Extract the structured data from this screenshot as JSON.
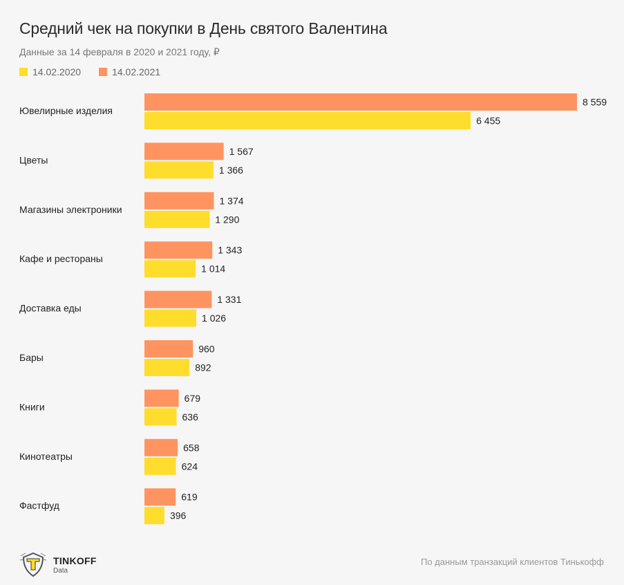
{
  "title": "Средний чек на покупки в День святого Валентина",
  "subtitle": "Данные за 14 февраля в 2020 и 2021 году, ₽",
  "legend": [
    {
      "label": "14.02.2020",
      "color": "#ffdd2d"
    },
    {
      "label": "14.02.2021",
      "color": "#ff9461"
    }
  ],
  "chart_data": {
    "type": "bar",
    "orientation": "horizontal",
    "categories": [
      "Ювелирные изделия",
      "Цветы",
      "Магазины электроники",
      "Кафе и рестораны",
      "Доставка еды",
      "Бары",
      "Книги",
      "Кинотеатры",
      "Фастфуд"
    ],
    "series": [
      {
        "name": "14.02.2021",
        "color": "#ff9461",
        "values": [
          8559,
          1567,
          1374,
          1343,
          1331,
          960,
          679,
          658,
          619
        ],
        "labels": [
          "8 559",
          "1 567",
          "1 374",
          "1 343",
          "1 331",
          "960",
          "679",
          "658",
          "619"
        ]
      },
      {
        "name": "14.02.2020",
        "color": "#ffdd2d",
        "values": [
          6455,
          1366,
          1290,
          1014,
          1026,
          892,
          636,
          624,
          396
        ],
        "labels": [
          "6 455",
          "1 366",
          "1 290",
          "1 014",
          "1 026",
          "892",
          "636",
          "624",
          "396"
        ]
      }
    ],
    "xlim": [
      0,
      8559
    ],
    "grid": false,
    "legend_position": "top-left"
  },
  "footer": {
    "brand": "TINKOFF",
    "brand_sub": "Data",
    "source": "По данным транзакций клиентов Тинькофф"
  }
}
